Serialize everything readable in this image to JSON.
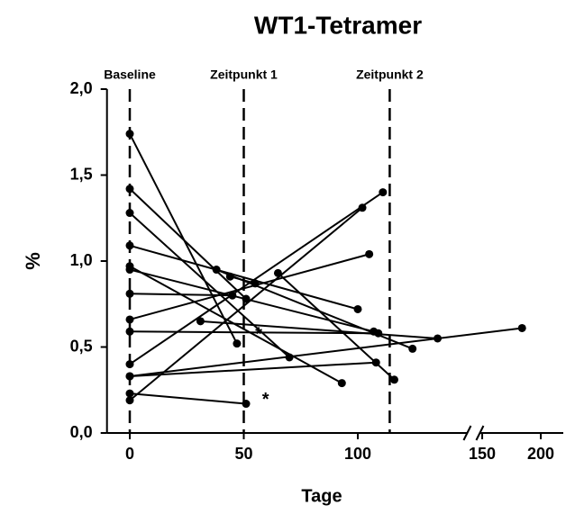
{
  "chart_data": {
    "type": "line",
    "title": "WT1-Tetramer",
    "x_label": "Tage",
    "y_label": "%",
    "xlim": [
      -10,
      219
    ],
    "x_break": 148,
    "xticks": [
      0,
      50,
      100,
      150,
      200
    ],
    "ylim": [
      0,
      2
    ],
    "yticks": [
      {
        "value": 0,
        "label": "0,0"
      },
      {
        "value": 0.5,
        "label": "0,5"
      },
      {
        "value": 1,
        "label": "1,0"
      },
      {
        "value": 1.5,
        "label": "1,5"
      },
      {
        "value": 2,
        "label": "2,0"
      }
    ],
    "color": "#000000",
    "vlines": [
      {
        "x": 0,
        "label": "Baseline"
      },
      {
        "x": 50,
        "label": "Zeitpunkt 1"
      },
      {
        "x": 114,
        "label": "Zeitpunkt 2"
      }
    ],
    "annotations": [
      {
        "x": 55,
        "y": 0.57,
        "text": "*"
      },
      {
        "x": 58,
        "y": 0.19,
        "text": "*"
      }
    ],
    "series": [
      {
        "x": [
          0,
          47
        ],
        "values": [
          1.74,
          0.52
        ]
      },
      {
        "x": [
          0,
          51
        ],
        "values": [
          1.42,
          0.78
        ]
      },
      {
        "x": [
          0,
          70
        ],
        "values": [
          1.28,
          0.44
        ]
      },
      {
        "x": [
          0,
          100
        ],
        "values": [
          1.09,
          0.72
        ]
      },
      {
        "x": [
          0,
          93
        ],
        "values": [
          0.97,
          0.29
        ]
      },
      {
        "x": [
          0,
          107
        ],
        "values": [
          0.95,
          0.59
        ]
      },
      {
        "x": [
          0,
          45
        ],
        "values": [
          0.81,
          0.8
        ]
      },
      {
        "x": [
          0,
          105
        ],
        "values": [
          0.66,
          1.04
        ]
      },
      {
        "x": [
          0,
          109
        ],
        "values": [
          0.59,
          0.58
        ]
      },
      {
        "x": [
          0,
          108
        ],
        "values": [
          0.33,
          0.41
        ]
      },
      {
        "x": [
          0,
          184
        ],
        "values": [
          0.33,
          0.61
        ]
      },
      {
        "x": [
          0,
          51
        ],
        "values": [
          0.23,
          0.17
        ]
      },
      {
        "x": [
          0,
          102
        ],
        "values": [
          0.19,
          1.31
        ]
      },
      {
        "x": [
          0,
          111
        ],
        "values": [
          0.4,
          1.4
        ]
      },
      {
        "x": [
          38,
          124
        ],
        "values": [
          0.95,
          0.49
        ]
      },
      {
        "x": [
          31,
          135
        ],
        "values": [
          0.65,
          0.55
        ]
      },
      {
        "x": [
          65,
          116
        ],
        "values": [
          0.93,
          0.31
        ]
      },
      {
        "x": [
          44,
          55
        ],
        "values": [
          0.91,
          0.87
        ]
      }
    ]
  }
}
